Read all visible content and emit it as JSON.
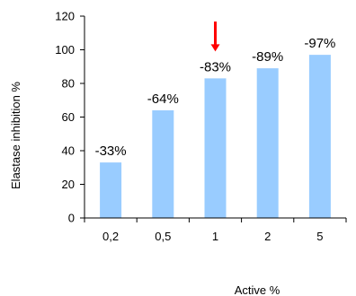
{
  "chart_data": {
    "type": "bar",
    "categories": [
      "0,2",
      "0,5",
      "1",
      "2",
      "5"
    ],
    "values": [
      33,
      64,
      83,
      89,
      97
    ],
    "data_labels": [
      "-33%",
      "-64%",
      "-83%",
      "-89%",
      "-97%"
    ],
    "ylabel": "Elastase inhibition %",
    "xlabel": "Active %",
    "ylim": [
      0,
      120
    ],
    "yticks": [
      "0",
      "20",
      "40",
      "60",
      "80",
      "100",
      "120"
    ],
    "grid": false,
    "bar_color": "#99CCFF",
    "highlight": {
      "category": "1",
      "marker": "down-arrow",
      "color": "#FF0000"
    }
  }
}
